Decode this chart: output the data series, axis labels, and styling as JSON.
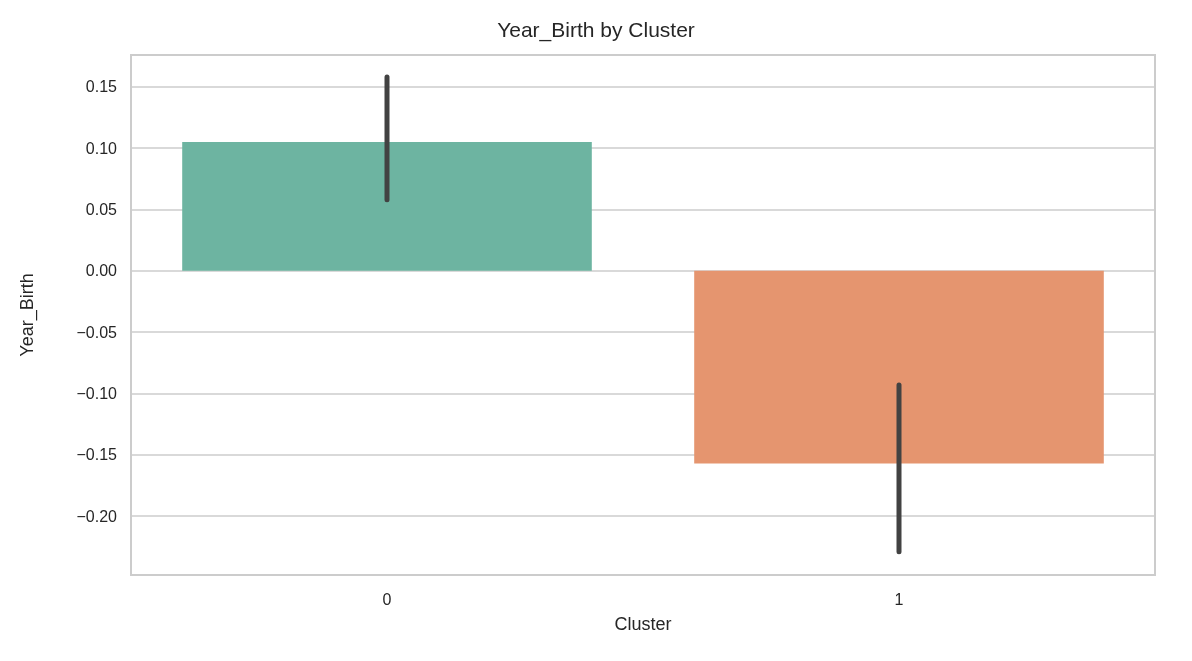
{
  "chart_data": {
    "type": "bar",
    "title": "Year_Birth by Cluster",
    "xlabel": "Cluster",
    "ylabel": "Year_Birth",
    "categories": [
      "0",
      "1"
    ],
    "values": [
      0.105,
      -0.157
    ],
    "colors": [
      "#6db4a1",
      "#e5956f"
    ],
    "errors": [
      [
        0.058,
        0.158
      ],
      [
        -0.229,
        -0.093
      ]
    ],
    "ylim": [
      -0.248,
      0.176
    ],
    "yticks": [
      {
        "value": -0.2,
        "label": "−0.20"
      },
      {
        "value": -0.15,
        "label": "−0.15"
      },
      {
        "value": -0.1,
        "label": "−0.10"
      },
      {
        "value": -0.05,
        "label": "−0.05"
      },
      {
        "value": 0,
        "label": "0.00"
      },
      {
        "value": 0.05,
        "label": "0.05"
      },
      {
        "value": 0.1,
        "label": "0.10"
      },
      {
        "value": 0.15,
        "label": "0.15"
      }
    ],
    "grid": "y"
  }
}
